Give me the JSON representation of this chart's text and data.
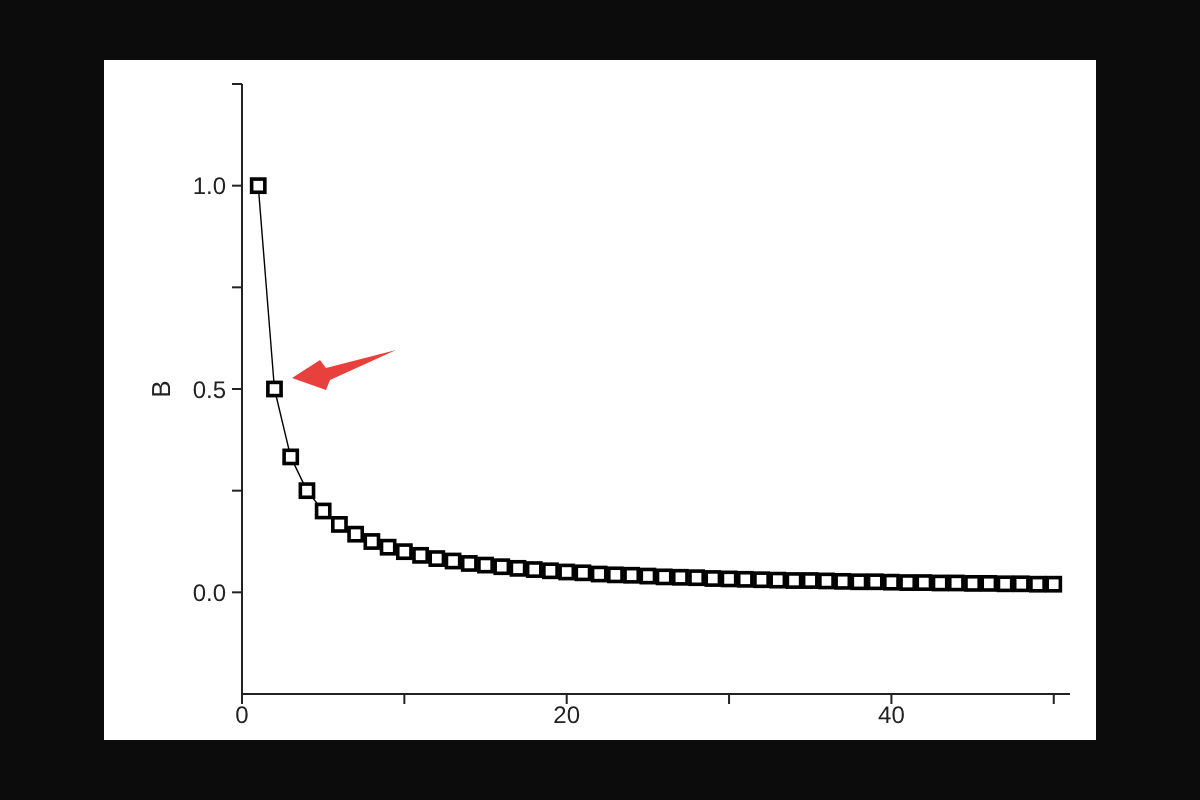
{
  "chart_data": {
    "type": "line",
    "ylabel": "B",
    "x": [
      1,
      2,
      3,
      4,
      5,
      6,
      7,
      8,
      9,
      10,
      11,
      12,
      13,
      14,
      15,
      16,
      17,
      18,
      19,
      20,
      21,
      22,
      23,
      24,
      25,
      26,
      27,
      28,
      29,
      30,
      31,
      32,
      33,
      34,
      35,
      36,
      37,
      38,
      39,
      40,
      41,
      42,
      43,
      44,
      45,
      46,
      47,
      48,
      49,
      50
    ],
    "series": [
      {
        "color": "#000000",
        "values": [
          1.0,
          0.5,
          0.333,
          0.25,
          0.2,
          0.167,
          0.143,
          0.125,
          0.111,
          0.1,
          0.091,
          0.083,
          0.077,
          0.071,
          0.067,
          0.063,
          0.059,
          0.056,
          0.053,
          0.05,
          0.048,
          0.045,
          0.043,
          0.042,
          0.04,
          0.038,
          0.037,
          0.036,
          0.034,
          0.033,
          0.032,
          0.031,
          0.03,
          0.029,
          0.029,
          0.028,
          0.027,
          0.026,
          0.026,
          0.025,
          0.024,
          0.024,
          0.023,
          0.023,
          0.022,
          0.022,
          0.021,
          0.021,
          0.02,
          0.02
        ]
      }
    ],
    "xlim": [
      0,
      51
    ],
    "ylim": [
      -0.25,
      1.25
    ],
    "xticks": [
      0,
      {
        "value": 10,
        "label": null
      },
      20,
      {
        "value": 30,
        "label": null
      },
      40,
      {
        "value": 50,
        "label": null
      }
    ],
    "yticks": [
      {
        "value": 0,
        "label": "0.0"
      },
      {
        "value": 0.25,
        "label": null
      },
      0.5,
      {
        "value": 0.75,
        "label": null
      },
      {
        "value": 1,
        "label": "1.0"
      },
      {
        "value": 1.25,
        "label": null
      }
    ],
    "marker": "square",
    "line_style": "solid"
  }
}
